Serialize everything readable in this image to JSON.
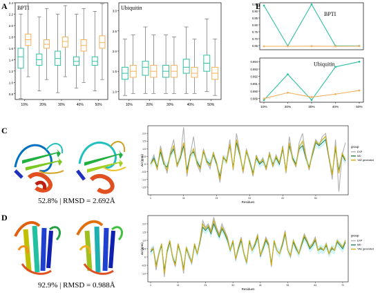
{
  "panels": {
    "A": "A",
    "B": "B",
    "C": "C",
    "D": "D"
  },
  "colors": {
    "green": "#2ec0a0",
    "orange": "#f5b05a",
    "exp": "#b0b0b0",
    "md": "#1f7a5a",
    "yoe": "#d4ac0d"
  },
  "captions": {
    "c": "52.8% | RMSD = 2.692Å",
    "d": "92.9% | RMSD = 0.988Å"
  },
  "chart_data": [
    {
      "id": "A-left",
      "type": "box",
      "title": "BPTI",
      "categories": [
        "10%",
        "20%",
        "30%",
        "40%",
        "50%"
      ],
      "yticks": [
        "0.8",
        "1.0",
        "1.2",
        "1.4",
        "1.6",
        "1.8",
        "2.0",
        "2.2",
        "2.4"
      ],
      "ylim": [
        0.7,
        2.4
      ],
      "series": [
        {
          "color": "green",
          "boxes": [
            [
              0.72,
              1.25,
              1.45,
              1.6,
              2.2
            ],
            [
              0.85,
              1.3,
              1.4,
              1.5,
              2.15
            ],
            [
              0.82,
              1.3,
              1.42,
              1.55,
              2.2
            ],
            [
              0.9,
              1.3,
              1.37,
              1.45,
              2.2
            ],
            [
              0.85,
              1.3,
              1.37,
              1.45,
              2.25
            ]
          ]
        },
        {
          "color": "orange",
          "boxes": [
            [
              1.1,
              1.65,
              1.75,
              1.85,
              2.4
            ],
            [
              1.05,
              1.6,
              1.67,
              1.75,
              2.3
            ],
            [
              1.1,
              1.62,
              1.72,
              1.8,
              2.35
            ],
            [
              1.0,
              1.55,
              1.65,
              1.75,
              2.3
            ],
            [
              1.05,
              1.6,
              1.7,
              1.82,
              2.38
            ]
          ]
        }
      ]
    },
    {
      "id": "A-right",
      "type": "box",
      "title": "Ubiquitin",
      "categories": [
        "10%",
        "20%",
        "30%",
        "40%",
        "50%"
      ],
      "yticks": [
        "1.0",
        "1.5",
        "2.0",
        "2.5",
        "3.0"
      ],
      "ylim": [
        0.8,
        3.2
      ],
      "series": [
        {
          "color": "green",
          "boxes": [
            [
              0.9,
              1.3,
              1.45,
              1.6,
              2.3
            ],
            [
              0.95,
              1.4,
              1.6,
              1.75,
              2.6
            ],
            [
              0.95,
              1.35,
              1.5,
              1.65,
              2.4
            ],
            [
              0.95,
              1.45,
              1.6,
              1.8,
              2.6
            ],
            [
              1.0,
              1.5,
              1.7,
              1.9,
              2.8
            ]
          ]
        },
        {
          "color": "orange",
          "boxes": [
            [
              0.95,
              1.35,
              1.5,
              1.65,
              2.4
            ],
            [
              0.95,
              1.35,
              1.5,
              1.65,
              2.4
            ],
            [
              0.95,
              1.35,
              1.5,
              1.65,
              2.35
            ],
            [
              0.95,
              1.35,
              1.45,
              1.6,
              2.3
            ],
            [
              0.9,
              1.3,
              1.45,
              1.6,
              2.3
            ]
          ]
        }
      ]
    },
    {
      "id": "B-top",
      "type": "line",
      "title": "BPTI",
      "x": [
        "10%",
        "20%",
        "30%",
        "40%",
        "50%"
      ],
      "yticks": [
        "0.65",
        "0.70",
        "0.75",
        "0.80",
        "0.85",
        "0.90",
        "0.95"
      ],
      "ylim": [
        0.62,
        0.96
      ],
      "series": [
        {
          "color": "green",
          "values": [
            0.94,
            0.648,
            0.948,
            0.648,
            0.648
          ]
        },
        {
          "color": "orange",
          "values": [
            0.645,
            0.645,
            0.646,
            0.645,
            0.646
          ]
        }
      ]
    },
    {
      "id": "B-bottom",
      "type": "line",
      "title": "Ubiquitin",
      "x": [
        "10%",
        "20%",
        "30%",
        "40%",
        "50%"
      ],
      "yticks": [
        "0.989",
        "0.990",
        "0.991",
        "0.992",
        "0.993",
        "0.994"
      ],
      "ylim": [
        0.9885,
        0.9945
      ],
      "series": [
        {
          "color": "green",
          "values": [
            0.9888,
            0.9923,
            0.9888,
            0.9933,
            0.994
          ]
        },
        {
          "color": "orange",
          "values": [
            0.989,
            0.9898,
            0.9892,
            0.9896,
            0.9901
          ]
        }
      ]
    },
    {
      "id": "C-chart",
      "type": "line",
      "xlabel": "Residues",
      "ylabel": "ΔC(ppm)",
      "yticks": [
        "-1.5",
        "-1.0",
        "-0.5",
        "0",
        "0.5",
        "1.0",
        "1.5",
        "2.0"
      ],
      "ylim": [
        -2.0,
        2.5
      ],
      "xticks": [
        "1",
        "11",
        "21",
        "31",
        "41",
        "51"
      ],
      "legend_title": "group",
      "legend_items": [
        "EXP",
        "MD",
        "YAE generated"
      ],
      "series": [
        {
          "color": "exp",
          "values": [
            0.0,
            0.6,
            -0.4,
            1.2,
            0.2,
            -0.6,
            0.8,
            1.6,
            -0.2,
            0.4,
            2.4,
            -0.8,
            0.6,
            1.8,
            0.0,
            -0.5,
            1.0,
            0.2,
            -0.3,
            0.8,
            0.0,
            -1.2,
            0.5,
            0.2,
            1.6,
            -0.4,
            2.0,
            0.8,
            -0.6,
            1.0,
            0.2,
            -0.8,
            0.6,
            0.0,
            0.4,
            -0.4,
            0.8,
            -0.2,
            0.6,
            0.0,
            1.2,
            -0.6,
            1.8,
            0.4,
            -0.2,
            1.4,
            2.0,
            0.6,
            -0.4,
            0.8,
            1.6,
            1.2,
            1.8,
            2.0,
            0.4,
            -1.0,
            1.6,
            -1.8,
            0.6,
            1.4
          ]
        },
        {
          "color": "md",
          "values": [
            0.0,
            0.4,
            -0.2,
            0.8,
            0.0,
            -0.2,
            0.6,
            1.0,
            0.0,
            0.4,
            1.2,
            -0.4,
            0.6,
            0.8,
            0.2,
            -0.2,
            0.8,
            0.2,
            0.0,
            0.6,
            0.0,
            -0.8,
            0.4,
            0.2,
            1.2,
            -0.2,
            1.4,
            0.6,
            -0.4,
            0.8,
            0.2,
            -0.6,
            0.4,
            0.0,
            0.2,
            -0.2,
            0.6,
            0.0,
            0.4,
            0.0,
            1.0,
            -0.4,
            1.2,
            0.4,
            0.0,
            1.0,
            1.2,
            0.4,
            -0.2,
            0.6,
            1.4,
            1.2,
            1.4,
            1.6,
            0.4,
            -0.6,
            1.0,
            -0.4,
            0.6,
            0.2
          ]
        },
        {
          "color": "yoe",
          "values": [
            0.0,
            0.3,
            -0.3,
            1.0,
            0.1,
            -0.4,
            0.7,
            1.2,
            -0.1,
            0.5,
            1.4,
            -0.6,
            0.5,
            1.0,
            0.1,
            -0.3,
            0.9,
            0.1,
            -0.1,
            0.7,
            0.1,
            -1.0,
            0.5,
            0.1,
            1.3,
            -0.3,
            1.6,
            0.7,
            -0.5,
            0.9,
            0.1,
            -0.7,
            0.5,
            0.1,
            0.3,
            -0.3,
            0.7,
            -0.1,
            0.5,
            0.1,
            1.1,
            -0.5,
            1.4,
            0.3,
            -0.1,
            1.1,
            1.5,
            0.5,
            -0.3,
            0.7,
            1.5,
            1.3,
            1.6,
            1.8,
            0.5,
            -0.7,
            1.2,
            -0.6,
            0.7,
            0.3
          ]
        }
      ]
    },
    {
      "id": "D-chart",
      "type": "line",
      "xlabel": "Residues",
      "ylabel": "ΔC(ppm)",
      "yticks": [
        "-1.0",
        "-0.5",
        "0",
        "0.5",
        "1.0",
        "1.5",
        "2.0"
      ],
      "ylim": [
        -1.5,
        2.5
      ],
      "xticks": [
        "1",
        "11",
        "21",
        "31",
        "41",
        "51",
        "61",
        "71"
      ],
      "legend_title": "group",
      "legend_items": [
        "EXP",
        "MD",
        "YAE generated"
      ],
      "series": [
        {
          "color": "exp",
          "values": [
            0.4,
            0.6,
            -0.8,
            0.2,
            0.8,
            -1.2,
            0.4,
            1.0,
            0.0,
            -0.6,
            0.8,
            0.2,
            -1.0,
            0.6,
            0.0,
            -0.4,
            0.8,
            0.2,
            1.0,
            2.2,
            1.8,
            2.0,
            1.6,
            2.4,
            1.8,
            1.4,
            2.0,
            1.6,
            1.2,
            0.4,
            1.0,
            -0.2,
            0.6,
            1.2,
            0.2,
            -0.4,
            1.0,
            0.4,
            0.8,
            1.4,
            0.0,
            0.6,
            1.2,
            0.8,
            -0.6,
            1.0,
            0.4,
            0.2,
            0.8,
            1.6,
            0.4,
            0.0,
            1.0,
            0.6,
            0.2,
            0.8,
            1.4,
            1.0,
            0.6,
            0.8,
            1.2,
            0.4,
            0.6,
            0.4,
            0.8,
            0.2,
            0.6,
            0.4,
            1.0,
            0.8,
            0.6,
            1.0
          ]
        },
        {
          "color": "md",
          "values": [
            0.3,
            0.5,
            -0.5,
            0.2,
            0.7,
            -0.8,
            0.3,
            0.9,
            0.0,
            -0.4,
            0.7,
            0.2,
            -0.7,
            0.5,
            0.1,
            -0.3,
            0.7,
            0.2,
            0.9,
            1.8,
            1.6,
            1.8,
            1.4,
            2.0,
            1.6,
            1.2,
            1.7,
            1.4,
            1.0,
            0.4,
            0.9,
            -0.1,
            0.5,
            1.0,
            0.2,
            -0.3,
            0.9,
            0.4,
            0.7,
            1.2,
            0.1,
            0.5,
            1.0,
            0.7,
            -0.4,
            0.9,
            0.4,
            0.2,
            0.7,
            1.4,
            0.4,
            0.1,
            0.9,
            0.5,
            0.2,
            0.7,
            1.2,
            0.9,
            0.5,
            0.7,
            1.0,
            0.4,
            0.5,
            0.4,
            0.7,
            0.2,
            0.5,
            0.4,
            0.9,
            0.7,
            0.5,
            0.9
          ]
        },
        {
          "color": "yoe",
          "values": [
            0.4,
            0.5,
            -0.6,
            0.2,
            0.8,
            -1.0,
            0.4,
            1.0,
            0.0,
            -0.5,
            0.8,
            0.2,
            -0.8,
            0.6,
            0.1,
            -0.3,
            0.8,
            0.2,
            1.0,
            2.0,
            1.7,
            1.9,
            1.5,
            2.2,
            1.7,
            1.3,
            1.8,
            1.5,
            1.1,
            0.4,
            1.0,
            -0.1,
            0.6,
            1.1,
            0.2,
            -0.3,
            1.0,
            0.4,
            0.8,
            1.3,
            0.1,
            0.6,
            1.1,
            0.8,
            -0.5,
            1.0,
            0.4,
            0.2,
            0.8,
            1.5,
            0.4,
            0.1,
            1.0,
            0.6,
            0.2,
            0.8,
            1.3,
            1.0,
            0.6,
            0.8,
            1.1,
            0.4,
            0.6,
            0.4,
            0.8,
            0.2,
            0.6,
            0.4,
            1.0,
            0.8,
            0.6,
            1.0
          ]
        }
      ]
    }
  ]
}
